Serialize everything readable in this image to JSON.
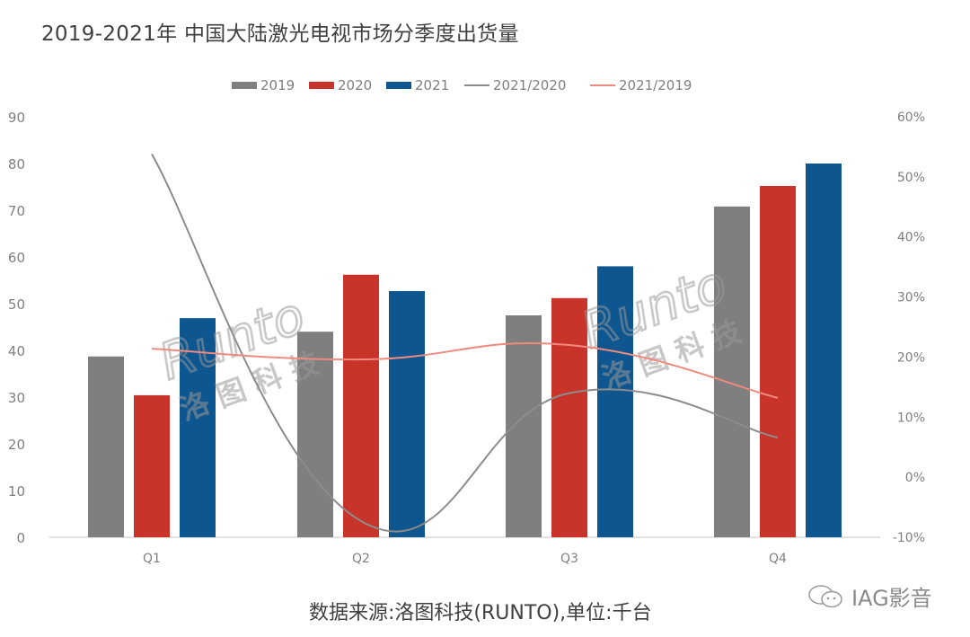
{
  "title": "2019-2021年 中国大陆激光电视市场分季度出货量",
  "legend": [
    {
      "label": "2019",
      "type": "bar",
      "color": "#7f7f7f"
    },
    {
      "label": "2020",
      "type": "bar",
      "color": "#c9342a"
    },
    {
      "label": "2021",
      "type": "bar",
      "color": "#0e568f"
    },
    {
      "label": "2021/2020",
      "type": "line",
      "color": "#8c8c8c"
    },
    {
      "label": "2021/2019",
      "type": "line",
      "color": "#f08a80"
    }
  ],
  "axes": {
    "left_ticks": [
      "0",
      "10",
      "20",
      "30",
      "40",
      "50",
      "60",
      "70",
      "80",
      "90"
    ],
    "right_ticks": [
      "-10%",
      "0%",
      "10%",
      "20%",
      "30%",
      "40%",
      "50%",
      "60%"
    ],
    "categories": [
      "Q1",
      "Q2",
      "Q3",
      "Q4"
    ]
  },
  "watermark": {
    "latin": "Runto",
    "cjk": "洛 图 科 技"
  },
  "source": "数据来源:洛图科技(RUNTO),单位:千台",
  "brand": {
    "icon": "wechat-icon",
    "label": "IAG影音"
  },
  "chart_data": {
    "type": "bar",
    "title": "2019-2021年 中国大陆激光电视市场分季度出货量",
    "categories": [
      "Q1",
      "Q2",
      "Q3",
      "Q4"
    ],
    "series": [
      {
        "name": "2019",
        "type": "bar",
        "axis": "left",
        "values": [
          38.7,
          44.0,
          47.5,
          70.8
        ]
      },
      {
        "name": "2020",
        "type": "bar",
        "axis": "left",
        "values": [
          30.4,
          56.2,
          51.2,
          75.2
        ]
      },
      {
        "name": "2021",
        "type": "bar",
        "axis": "left",
        "values": [
          46.9,
          52.7,
          58.0,
          80.0
        ]
      },
      {
        "name": "2021/2020",
        "type": "line",
        "axis": "right",
        "values": [
          53.8,
          -7.3,
          14.0,
          6.6
        ],
        "unit": "%"
      },
      {
        "name": "2021/2019",
        "type": "line",
        "axis": "right",
        "values": [
          21.4,
          19.6,
          22.0,
          13.2
        ],
        "unit": "%"
      }
    ],
    "xlabel": "",
    "ylabel": "千台",
    "ylim": [
      0,
      90
    ],
    "y2lim": [
      -10,
      60
    ],
    "grid": false,
    "legend_position": "top",
    "source_note": "数据来源:洛图科技(RUNTO),单位:千台"
  }
}
